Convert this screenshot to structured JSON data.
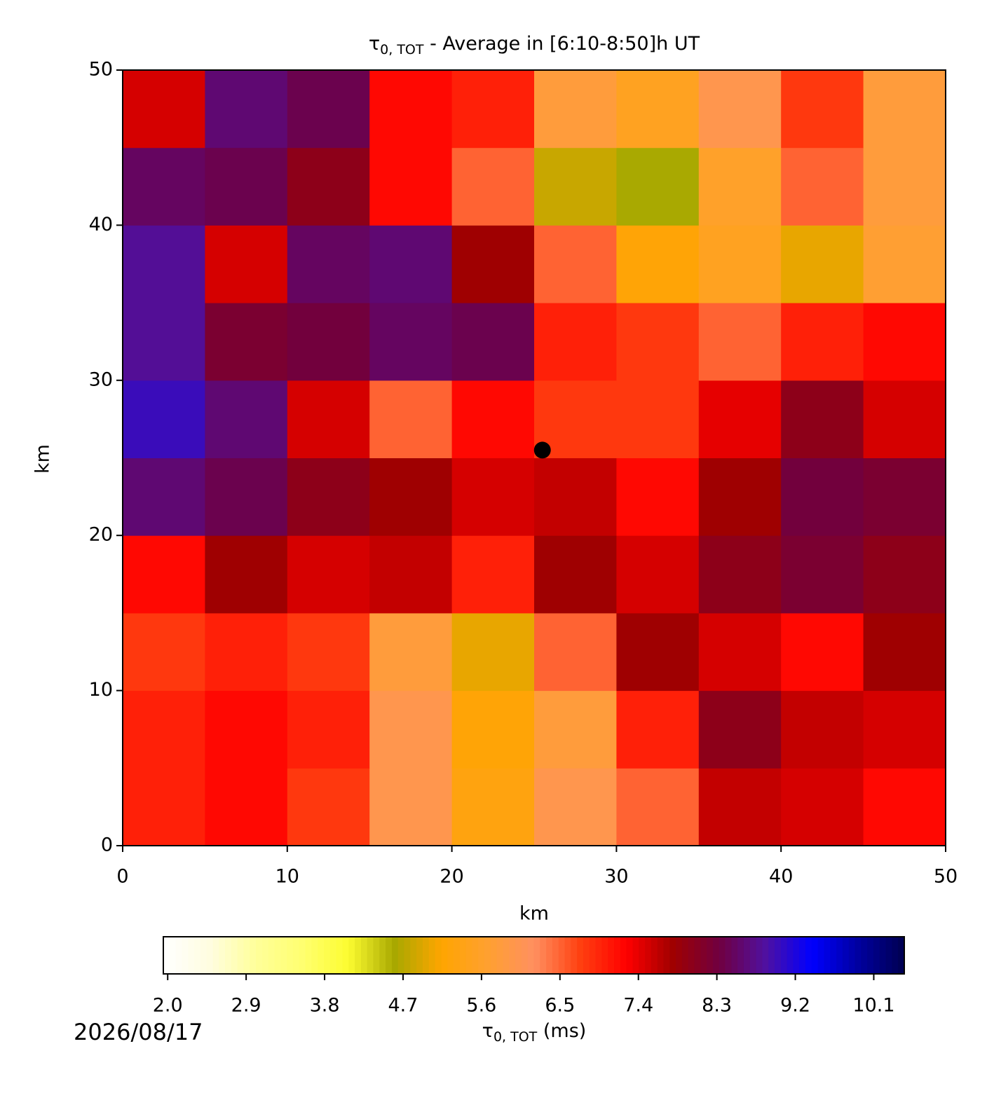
{
  "chart_data": {
    "type": "heatmap",
    "title": {
      "symbol": "τ",
      "subscript": "0, TOT",
      "text": " - Average in [6:10-8:50]h UT"
    },
    "xlabel": "km",
    "ylabel": "km",
    "xlim": [
      0,
      50
    ],
    "ylim": [
      0,
      50
    ],
    "xticks": [
      0,
      10,
      20,
      30,
      40,
      50
    ],
    "yticks": [
      0,
      10,
      20,
      30,
      40,
      50
    ],
    "xbins": [
      0,
      5,
      10,
      15,
      20,
      25,
      30,
      35,
      40,
      45,
      50
    ],
    "ybins": [
      0,
      5,
      10,
      15,
      20,
      25,
      30,
      35,
      40,
      45,
      50
    ],
    "z": [
      [
        7.0,
        7.2,
        6.8,
        6.0,
        5.3,
        6.0,
        6.5,
        7.6,
        7.5,
        7.2
      ],
      [
        7.0,
        7.2,
        7.0,
        6.0,
        5.2,
        5.8,
        7.0,
        8.0,
        7.6,
        7.5
      ],
      [
        6.8,
        7.0,
        6.8,
        5.8,
        5.0,
        6.5,
        7.8,
        7.5,
        7.2,
        7.8
      ],
      [
        7.2,
        7.8,
        7.5,
        7.6,
        7.0,
        7.8,
        7.5,
        8.0,
        8.2,
        8.0
      ],
      [
        8.6,
        8.4,
        8.0,
        7.8,
        7.5,
        7.6,
        7.2,
        7.8,
        8.3,
        8.2
      ],
      [
        9.0,
        8.6,
        7.5,
        6.5,
        7.2,
        6.8,
        6.8,
        7.4,
        8.0,
        7.5
      ],
      [
        8.8,
        8.2,
        8.3,
        8.5,
        8.4,
        7.0,
        6.8,
        6.5,
        7.0,
        7.2
      ],
      [
        8.8,
        7.5,
        8.5,
        8.6,
        7.8,
        6.5,
        5.2,
        5.5,
        5.0,
        5.7
      ],
      [
        8.5,
        8.4,
        8.0,
        7.2,
        6.5,
        4.8,
        4.6,
        5.6,
        6.5,
        5.8
      ],
      [
        7.5,
        8.6,
        8.4,
        7.2,
        7.0,
        5.8,
        5.5,
        6.0,
        6.8,
        5.8
      ]
    ],
    "marker": {
      "x": 25.5,
      "y": 25.5,
      "color": "#000000"
    },
    "colormap": [
      "#ffffff",
      "#fffde0",
      "#ffff9a",
      "#ffff70",
      "#fcfc30",
      "#a8a800",
      "#ffa500",
      "#ffa030",
      "#ff9060",
      "#ff4010",
      "#ff0000",
      "#a00000",
      "#700040",
      "#5010a0",
      "#0000ff",
      "#0000a0",
      "#000050"
    ],
    "clim": [
      1.95,
      10.45
    ],
    "cticks": [
      {
        "value": 2.0,
        "label": "2.0"
      },
      2.9,
      3.8,
      4.7,
      5.6,
      6.5,
      7.4,
      8.3,
      9.2,
      10.1
    ],
    "colorbar_label": {
      "symbol": "τ",
      "subscript": "0, TOT",
      "text": " (ms)"
    },
    "date": "2026/08/17"
  }
}
